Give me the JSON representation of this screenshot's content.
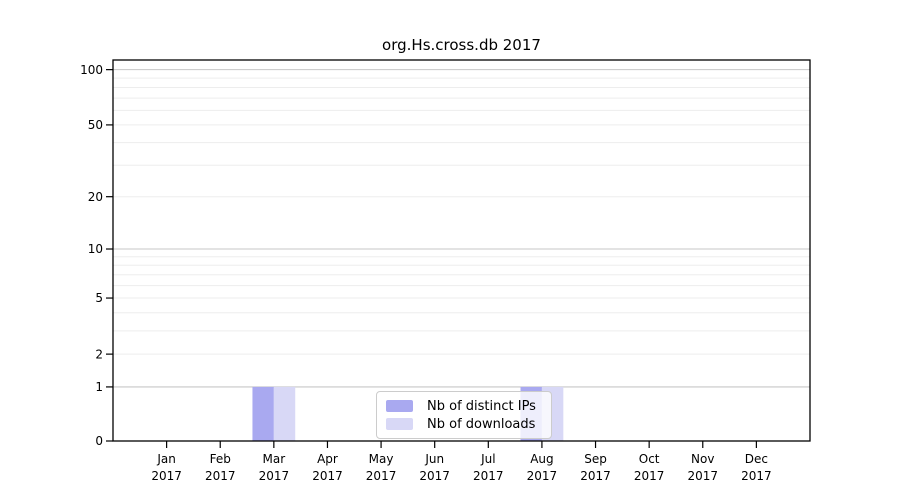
{
  "chart_data": {
    "type": "bar",
    "title": "org.Hs.cross.db 2017",
    "categories": [
      "Jan 2017",
      "Feb 2017",
      "Mar 2017",
      "Apr 2017",
      "May 2017",
      "Jun 2017",
      "Jul 2017",
      "Aug 2017",
      "Sep 2017",
      "Oct 2017",
      "Nov 2017",
      "Dec 2017"
    ],
    "series": [
      {
        "name": "Nb of distinct IPs",
        "color": "#a9a9f0",
        "values": [
          0,
          0,
          1,
          0,
          0,
          0,
          0,
          1,
          0,
          0,
          0,
          0
        ]
      },
      {
        "name": "Nb of downloads",
        "color": "#d8d8f6",
        "values": [
          0,
          0,
          1,
          0,
          0,
          0,
          0,
          1,
          0,
          0,
          0,
          0
        ]
      }
    ],
    "xlabel": "",
    "ylabel": "",
    "yscale": "log1p",
    "ylim": [
      0,
      113
    ],
    "yticks": [
      0,
      1,
      2,
      5,
      10,
      20,
      50,
      100
    ],
    "grid": {
      "major_values": [
        1,
        10,
        100
      ],
      "minor_values": [
        2,
        3,
        4,
        5,
        6,
        7,
        8,
        9,
        20,
        30,
        40,
        50,
        60,
        70,
        80,
        90
      ],
      "major_color": "#c7c7c7",
      "minor_color": "#ededed"
    },
    "legend_position": "bottom-center",
    "axis_color": "#000000"
  }
}
